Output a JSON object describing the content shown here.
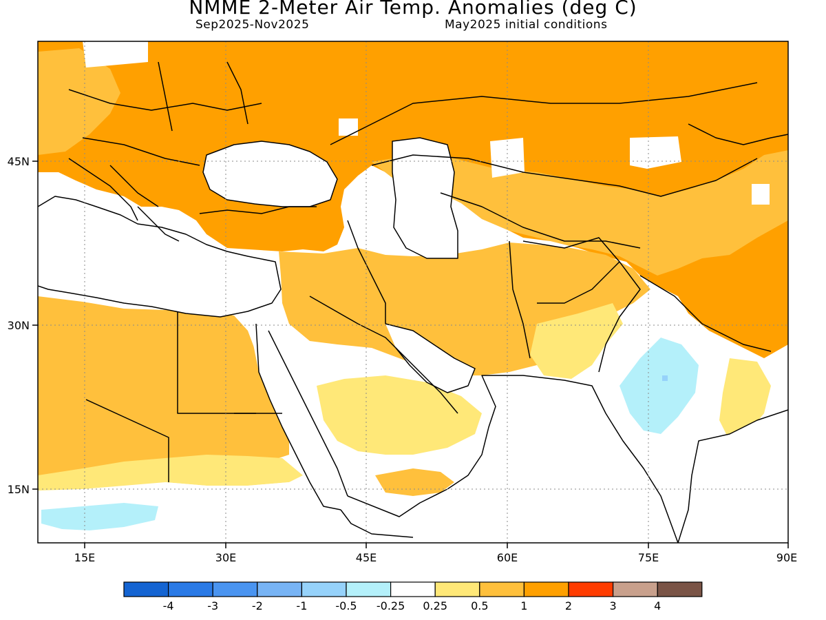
{
  "title": "NMME 2-Meter Air Temp. Anomalies (deg C)",
  "period": "Sep2025-Nov2025",
  "initial_conditions": "May2025 initial conditions",
  "axes": {
    "x_ticks": [
      "15E",
      "30E",
      "45E",
      "60E",
      "75E",
      "90E"
    ],
    "y_ticks": [
      "45N",
      "30N",
      "15N"
    ]
  },
  "colorbar": {
    "labels": [
      "-4",
      "-3",
      "-2",
      "-1",
      "-0.5",
      "-0.25",
      "0.25",
      "0.5",
      "1",
      "2",
      "3",
      "4"
    ],
    "colors": [
      "#1464d2",
      "#2a7ae6",
      "#4a94f0",
      "#78b4f5",
      "#96d2fa",
      "#b4f0fa",
      "#ffffff",
      "#ffe878",
      "#ffc03c",
      "#ffa000",
      "#ff3c00",
      "#c8a08c",
      "#7a5446"
    ]
  }
}
